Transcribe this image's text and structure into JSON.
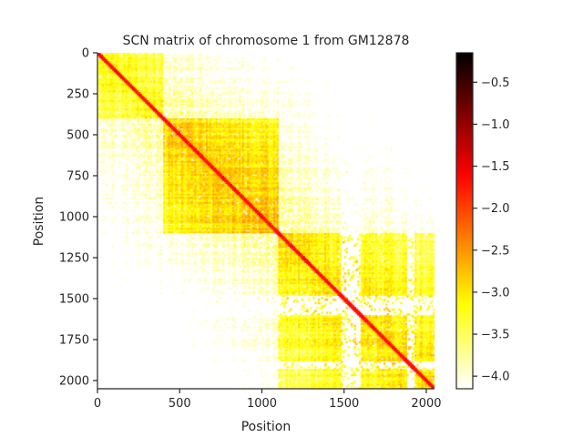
{
  "chart_data": {
    "type": "heatmap",
    "title": "SCN matrix of chromosome 1 from GM12878",
    "xlabel": "Position",
    "ylabel": "Position",
    "xlim": [
      0,
      2050
    ],
    "ylim": [
      0,
      2050
    ],
    "y_inverted": true,
    "x_ticks": [
      0,
      500,
      1000,
      1500,
      2000
    ],
    "x_tick_labels": [
      "0",
      "500",
      "1000",
      "1500",
      "2000"
    ],
    "y_ticks": [
      0,
      250,
      500,
      750,
      1000,
      1250,
      1500,
      1750,
      2000
    ],
    "y_tick_labels": [
      "0",
      "250",
      "500",
      "750",
      "1000",
      "1250",
      "1500",
      "1750",
      "2000"
    ],
    "colormap": "hot_r",
    "colorbar": {
      "vmin": -4.15,
      "vmax": -0.15,
      "ticks": [
        -0.5,
        -1.0,
        -1.5,
        -2.0,
        -2.5,
        -3.0,
        -3.5,
        -4.0
      ],
      "tick_labels": [
        "−0.5",
        "−1.0",
        "−1.5",
        "−2.0",
        "−2.5",
        "−3.0",
        "−3.5",
        "−4.0"
      ]
    },
    "domains": [
      {
        "start": 0,
        "end": 400,
        "level": -3.0
      },
      {
        "start": 400,
        "end": 1100,
        "level": -2.6
      },
      {
        "start": 1100,
        "end": 2050,
        "level": -2.8
      }
    ],
    "empty_bands": [
      {
        "start": 1480,
        "end": 1600
      },
      {
        "start": 1880,
        "end": 1930
      }
    ],
    "diagonal_level": -1.6,
    "grid": false
  }
}
